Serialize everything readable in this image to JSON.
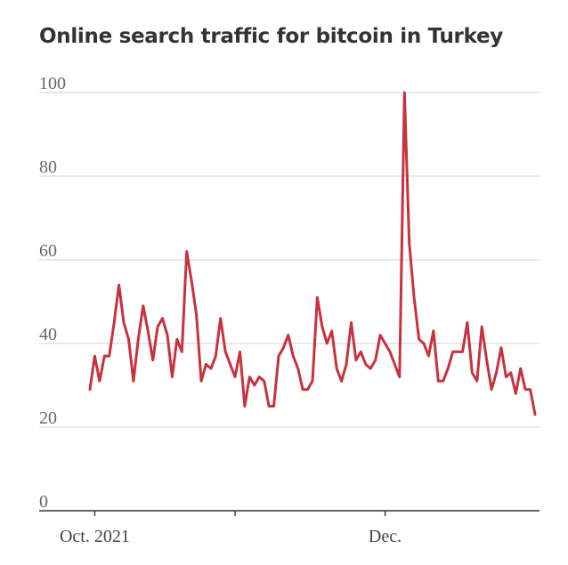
{
  "title": "Online search traffic for bitcoin in Turkey",
  "chart_data": {
    "type": "line",
    "title": "Online search traffic for bitcoin in Turkey",
    "xlabel": "",
    "ylabel": "",
    "ylim": [
      0,
      100
    ],
    "yticks": [
      "0",
      "20",
      "40",
      "60",
      "80",
      "100"
    ],
    "xticks": [
      {
        "label": "Oct. 2021",
        "x": 1
      },
      {
        "label": "",
        "x": 30
      },
      {
        "label": "Dec.",
        "x": 61
      }
    ],
    "grid": true,
    "color": "#c8313e",
    "series": [
      {
        "values": [
          29,
          37,
          31,
          37,
          37,
          45,
          54,
          45,
          41,
          31,
          41,
          49,
          43,
          36,
          44,
          46,
          42,
          32,
          41,
          38,
          62,
          55,
          47,
          31,
          35,
          34,
          37,
          46,
          38,
          35,
          32,
          38,
          25,
          32,
          30,
          32,
          31,
          25,
          25,
          37,
          39,
          42,
          37,
          34,
          29,
          29,
          31,
          51,
          44,
          40,
          43,
          34,
          31,
          35,
          45,
          36,
          38,
          35,
          34,
          36,
          42,
          40,
          38,
          35,
          32,
          100,
          64,
          51,
          41,
          40,
          37,
          43,
          31,
          31,
          34,
          38,
          38,
          38,
          45,
          33,
          31,
          44,
          36,
          29,
          33,
          39,
          32,
          33,
          28,
          34,
          29,
          29,
          23
        ]
      }
    ]
  }
}
